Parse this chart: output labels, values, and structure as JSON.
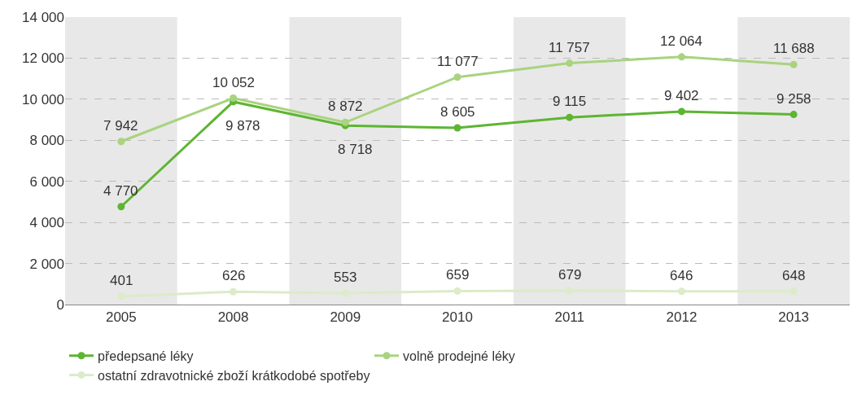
{
  "chart_data": {
    "type": "line",
    "categories": [
      "2005",
      "2008",
      "2009",
      "2010",
      "2011",
      "2012",
      "2013"
    ],
    "series": [
      {
        "name": "předepsané léky",
        "color": "#5db531",
        "values": [
          4770,
          9878,
          8718,
          8605,
          9115,
          9402,
          9258
        ],
        "value_labels": [
          "4 770",
          "9 878",
          "8 718",
          "8 605",
          "9 115",
          "9 402",
          "9 258"
        ]
      },
      {
        "name": "volně prodejné léky",
        "color": "#a9d37f",
        "values": [
          7942,
          10052,
          8872,
          11077,
          11757,
          12064,
          11688
        ],
        "value_labels": [
          "7 942",
          "10 052",
          "8 872",
          "11 077",
          "11 757",
          "12 064",
          "11 688"
        ]
      },
      {
        "name": "ostatní zdravotnické zboží krátkodobé spotřeby",
        "color": "#dcebc8",
        "values": [
          401,
          626,
          553,
          659,
          679,
          646,
          648
        ],
        "value_labels": [
          "401",
          "626",
          "553",
          "659",
          "679",
          "646",
          "648"
        ]
      }
    ],
    "ylim": [
      0,
      14000
    ],
    "yticks": [
      0,
      {
        "value": 2000,
        "label": "2 000"
      },
      {
        "value": 4000,
        "label": "4 000"
      },
      {
        "value": 6000,
        "label": "6 000"
      },
      {
        "value": 8000,
        "label": "8 000"
      },
      {
        "value": 10000,
        "label": "10 000"
      },
      {
        "value": 12000,
        "label": "12 000"
      },
      {
        "value": 14000,
        "label": "14 000"
      }
    ],
    "bands": [
      {
        "axis": "x",
        "from": "2005",
        "to": "2005",
        "color": "#e8e8e8"
      },
      {
        "axis": "x",
        "from": "2009",
        "to": "2009",
        "color": "#e8e8e8"
      },
      {
        "axis": "x",
        "from": "2011",
        "to": "2011",
        "color": "#e8e8e8"
      },
      {
        "axis": "x",
        "from": "2013",
        "to": "2013",
        "color": "#e8e8e8"
      }
    ],
    "grid": "y",
    "legend": "bottom",
    "marker": "circle",
    "line_style": "solid"
  }
}
